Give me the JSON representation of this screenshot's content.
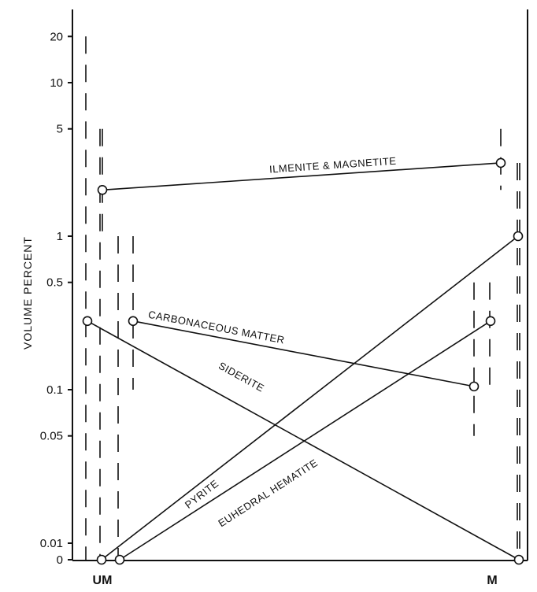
{
  "chart_data": {
    "type": "line",
    "ylabel": "VOLUME PERCENT",
    "yscale": "log",
    "ylim": [
      0,
      30
    ],
    "yticks": [
      {
        "value": 20,
        "label": "20"
      },
      {
        "value": 10,
        "label": "10"
      },
      {
        "value": 5,
        "label": "5"
      },
      {
        "value": 1,
        "label": "1"
      },
      {
        "value": 0.5,
        "label": "0.5"
      },
      {
        "value": 0.1,
        "label": "0.1"
      },
      {
        "value": 0.05,
        "label": "0.05"
      },
      {
        "value": 0.01,
        "label": "0.01"
      },
      {
        "value": 0,
        "label": "0"
      }
    ],
    "categories": [
      "UM",
      "M"
    ],
    "grid": false,
    "series": [
      {
        "name": "ILMENITE & MAGNETITE",
        "values": [
          2.0,
          3.0
        ],
        "ranges": [
          [
            1.0,
            5.0
          ],
          [
            2.0,
            5.0
          ]
        ]
      },
      {
        "name": "CARBONACEOUS MATTER",
        "values": [
          0.28,
          0.105
        ],
        "ranges": [
          [
            0.1,
            1.0
          ],
          [
            0.05,
            0.5
          ]
        ]
      },
      {
        "name": "SIDERITE",
        "values": [
          0.28,
          0
        ],
        "ranges": [
          [
            0,
            20
          ],
          [
            0,
            3
          ]
        ]
      },
      {
        "name": "PYRITE",
        "values": [
          0,
          1.0
        ],
        "ranges": [
          [
            0,
            5
          ],
          [
            0,
            3
          ]
        ]
      },
      {
        "name": "EUHEDRAL HEMATITE",
        "values": [
          0,
          0.28
        ],
        "ranges": [
          [
            0,
            1
          ],
          [
            0.1,
            0.5
          ]
        ]
      }
    ]
  }
}
